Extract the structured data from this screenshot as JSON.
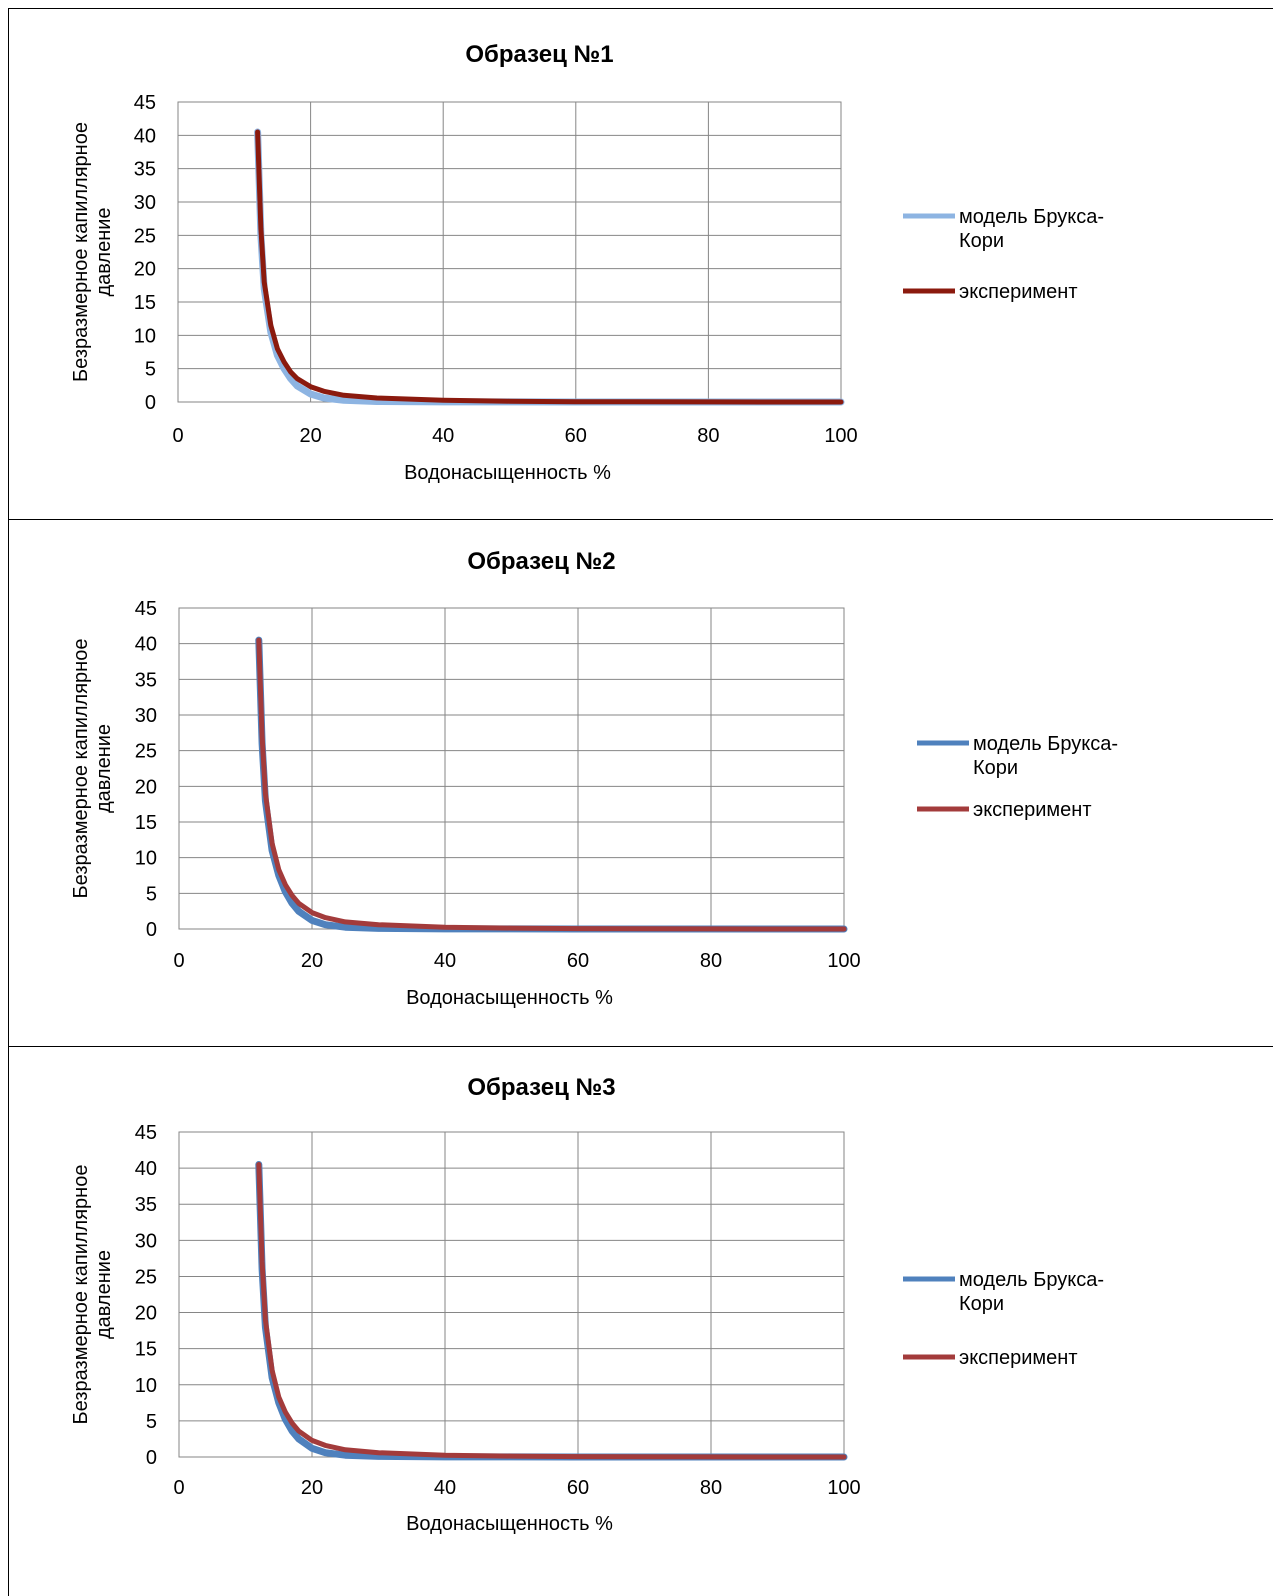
{
  "legend_labels": {
    "model": "модель Брукса-Кори",
    "experiment": "эксперимент"
  },
  "chart_data": [
    {
      "type": "line",
      "title": "Образец №1",
      "xlabel": "Водонасыщенность %",
      "ylabel": "Безразмерное капиллярное давление",
      "xlim": [
        0,
        100
      ],
      "ylim": [
        0,
        45
      ],
      "x_ticks": [
        "0",
        "20",
        "40",
        "60",
        "80",
        "100"
      ],
      "y_ticks": [
        "0",
        "5",
        "10",
        "15",
        "20",
        "25",
        "30",
        "35",
        "40",
        "45"
      ],
      "grid": true,
      "legend_position": "right",
      "colors": {
        "model": "#8db4e2",
        "experiment": "#8b1a0e"
      },
      "series": [
        {
          "name": "модель Брукса-Кори",
          "x": [
            12,
            12.5,
            13,
            14,
            15,
            16,
            17,
            18,
            20,
            22,
            25,
            30,
            40,
            50,
            60,
            80,
            100
          ],
          "values": [
            40.5,
            25,
            17,
            10.5,
            7,
            5,
            3.5,
            2.4,
            1.2,
            0.6,
            0.25,
            0.08,
            0.02,
            0.01,
            0,
            0,
            0
          ]
        },
        {
          "name": "эксперимент",
          "x": [
            12,
            12.5,
            13,
            14,
            15,
            16,
            17,
            18,
            20,
            22,
            25,
            30,
            40,
            50,
            60,
            80,
            100
          ],
          "values": [
            40.5,
            26,
            18,
            11.5,
            8,
            6,
            4.5,
            3.5,
            2.3,
            1.6,
            1.0,
            0.6,
            0.25,
            0.12,
            0.05,
            0.02,
            0
          ]
        }
      ]
    },
    {
      "type": "line",
      "title": "Образец №2",
      "xlabel": "Водонасыщенность %",
      "ylabel": "Безразмерное капиллярное давление",
      "xlim": [
        0,
        100
      ],
      "ylim": [
        0,
        45
      ],
      "x_ticks": [
        "0",
        "20",
        "40",
        "60",
        "80",
        "100"
      ],
      "y_ticks": [
        "0",
        "5",
        "10",
        "15",
        "20",
        "25",
        "30",
        "35",
        "40",
        "45"
      ],
      "grid": true,
      "legend_position": "right",
      "colors": {
        "model": "#4f81bd",
        "experiment": "#a33b3b"
      },
      "series": [
        {
          "name": "модель Брукса-Кори",
          "x": [
            12,
            12.5,
            13,
            14,
            15,
            16,
            17,
            18,
            20,
            22,
            25,
            30,
            40,
            50,
            60,
            80,
            100
          ],
          "values": [
            40.5,
            26,
            18,
            11,
            7.5,
            5.2,
            3.6,
            2.5,
            1.2,
            0.6,
            0.25,
            0.08,
            0.02,
            0.01,
            0,
            0,
            0
          ]
        },
        {
          "name": "эксперимент",
          "x": [
            12,
            12.5,
            13,
            14,
            15,
            16,
            17,
            18,
            20,
            22,
            25,
            30,
            40,
            50,
            60,
            80,
            100
          ],
          "values": [
            40.5,
            27,
            19,
            12,
            8.3,
            6.2,
            4.7,
            3.6,
            2.3,
            1.6,
            1.0,
            0.6,
            0.25,
            0.12,
            0.05,
            0.02,
            0
          ]
        }
      ]
    },
    {
      "type": "line",
      "title": "Образец №3",
      "xlabel": "Водонасыщенность %",
      "ylabel": "Безразмерное капиллярное давление",
      "xlim": [
        0,
        100
      ],
      "ylim": [
        0,
        45
      ],
      "x_ticks": [
        "0",
        "20",
        "40",
        "60",
        "80",
        "100"
      ],
      "y_ticks": [
        "0",
        "5",
        "10",
        "15",
        "20",
        "25",
        "30",
        "35",
        "40",
        "45"
      ],
      "grid": true,
      "legend_position": "right",
      "colors": {
        "model": "#4f81bd",
        "experiment": "#a33b3b"
      },
      "series": [
        {
          "name": "модель Брукса-Кори",
          "x": [
            12,
            12.5,
            13,
            14,
            15,
            16,
            17,
            18,
            20,
            22,
            25,
            30,
            40,
            50,
            60,
            80,
            100
          ],
          "values": [
            40.5,
            26,
            18,
            11,
            7.5,
            5.2,
            3.6,
            2.5,
            1.2,
            0.6,
            0.25,
            0.08,
            0.02,
            0.01,
            0,
            0,
            0
          ]
        },
        {
          "name": "эксперимент",
          "x": [
            12,
            12.5,
            13,
            14,
            15,
            16,
            17,
            18,
            20,
            22,
            25,
            30,
            40,
            50,
            60,
            80,
            100
          ],
          "values": [
            40.5,
            27,
            19,
            12,
            8.3,
            6.2,
            4.7,
            3.6,
            2.3,
            1.6,
            1.0,
            0.6,
            0.25,
            0.12,
            0.05,
            0.02,
            0
          ]
        }
      ]
    }
  ]
}
